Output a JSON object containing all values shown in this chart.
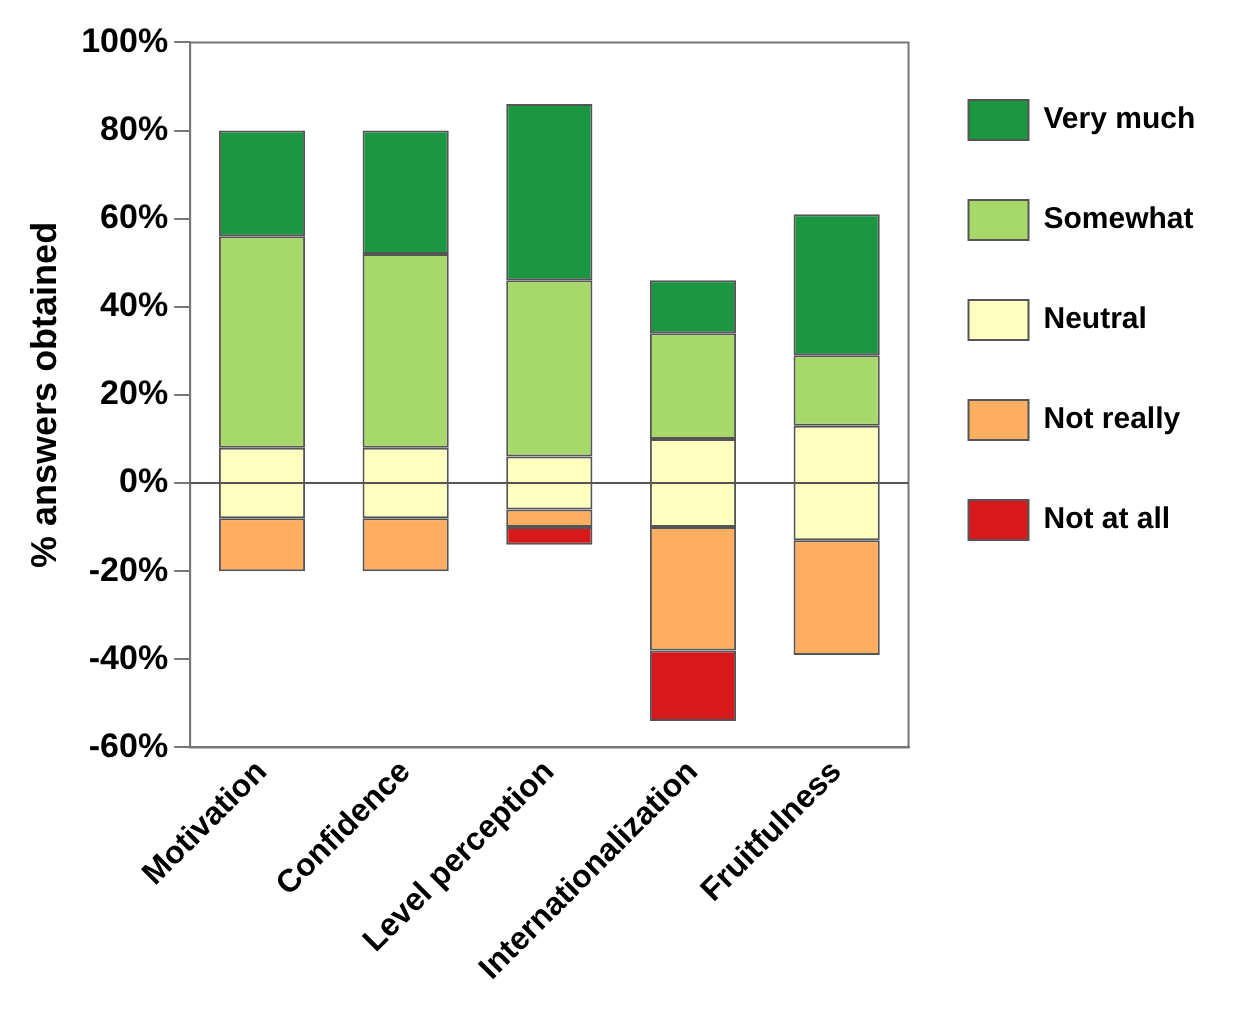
{
  "chart_data": {
    "type": "bar",
    "ylabel": "% answers obtained",
    "categories": [
      "Motivation",
      "Confidence",
      "Level perception",
      "Internationalization",
      "Fruitfulness"
    ],
    "series": [
      {
        "name": "Very much",
        "color": "#1b9641",
        "base": [
          56,
          52,
          46,
          34,
          29
        ],
        "values": [
          24,
          28,
          40,
          12,
          32
        ]
      },
      {
        "name": "Somewhat",
        "color": "#a6d96a",
        "base": [
          8,
          8,
          6,
          10,
          13
        ],
        "values": [
          48,
          44,
          40,
          24,
          16
        ]
      },
      {
        "name": "Neutral",
        "color": "#ffffc0",
        "base": [
          -8,
          -8,
          -6,
          -10,
          -13
        ],
        "values": [
          16,
          16,
          12,
          20,
          26
        ]
      },
      {
        "name": "Not really",
        "color": "#fdae61",
        "base": [
          -20,
          -20,
          -10,
          -38,
          -39
        ],
        "values": [
          12,
          12,
          4,
          28,
          26
        ]
      },
      {
        "name": "Not at all",
        "color": "#d7191c",
        "base": [
          null,
          null,
          -14,
          -54,
          null
        ],
        "values": [
          null,
          null,
          4,
          16,
          null
        ]
      }
    ],
    "ylim": [
      -60,
      100
    ],
    "yticks": [
      {
        "value": -60,
        "label": "-60%"
      },
      {
        "value": -40,
        "label": "-40%"
      },
      {
        "value": -20,
        "label": "-20%"
      },
      {
        "value": 0,
        "label": "0%"
      },
      {
        "value": 20,
        "label": "20%"
      },
      {
        "value": 40,
        "label": "40%"
      },
      {
        "value": 60,
        "label": "60%"
      },
      {
        "value": 80,
        "label": "80%"
      },
      {
        "value": 100,
        "label": "100%"
      }
    ],
    "ref_lines": [
      {
        "axis": "y",
        "value": 0
      }
    ],
    "grid": false,
    "legend": "right"
  }
}
